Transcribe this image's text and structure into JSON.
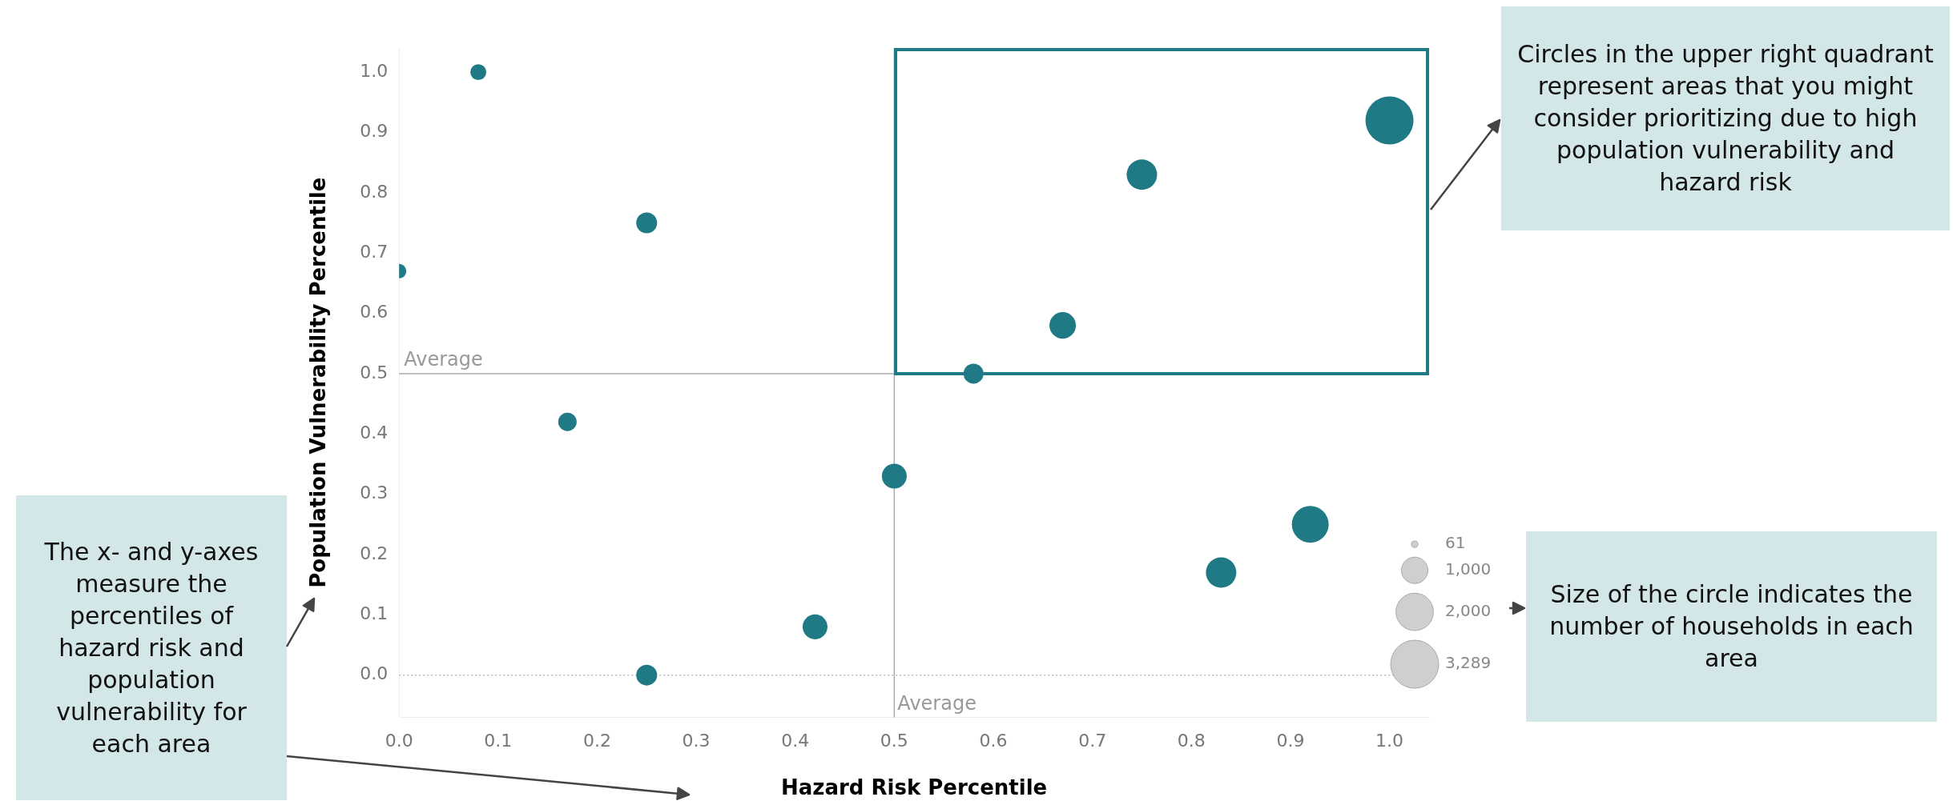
{
  "chart_data": {
    "type": "bubble",
    "xlabel": "Hazard Risk Percentile",
    "ylabel": "Population Vulnerability Percentile",
    "x": [
      0,
      0.08,
      0.17,
      0.25,
      0.25,
      0.42,
      0.5,
      0.58,
      0.67,
      0.75,
      0.83,
      0.92,
      1.0
    ],
    "values": [
      0.67,
      1.0,
      0.42,
      0.75,
      0.0,
      0.08,
      0.33,
      0.5,
      0.58,
      0.83,
      0.17,
      0.25,
      0.92
    ],
    "sizes": [
      300,
      360,
      480,
      620,
      620,
      880,
      880,
      570,
      1000,
      1320,
      1320,
      1930,
      3289
    ],
    "color": "#1f7a85",
    "size_legend": [
      61,
      {
        "value": 1000,
        "label": "1,000"
      },
      {
        "value": 2000,
        "label": "2,000"
      },
      {
        "value": 3289,
        "label": "3,289"
      }
    ],
    "xlim": [
      0,
      1.04
    ],
    "ylim": [
      -0.07,
      1.04
    ],
    "xticks": [
      {
        "value": 0,
        "label": "0.0"
      },
      0.1,
      0.2,
      0.3,
      0.4,
      0.5,
      0.6,
      0.7,
      0.8,
      0.9,
      {
        "value": 1,
        "label": "1.0"
      }
    ],
    "yticks": [
      {
        "value": 0,
        "label": "0.0"
      },
      0.1,
      0.2,
      0.3,
      0.4,
      0.5,
      0.6,
      0.7,
      0.8,
      0.9,
      {
        "value": 1,
        "label": "1.0"
      }
    ],
    "ref_lines": [
      {
        "axis": "x",
        "value": 0.5,
        "label": "Average",
        "color": "#aaaaaa"
      },
      {
        "axis": "y",
        "value": 0.5,
        "label": "Average",
        "color": "#aaaaaa"
      },
      {
        "axis": "y",
        "value": 0,
        "color": "#bbbbbb",
        "line_style": "dotted"
      }
    ],
    "annotations": [
      "Circles in the upper right quadrant represent areas that you might consider prioritizing due to high population vulnerability and hazard risk",
      "Size of the circle indicates the number of households in each area",
      "The x- and y-axes measure the percentiles of hazard risk and population vulnerability for each area"
    ]
  }
}
